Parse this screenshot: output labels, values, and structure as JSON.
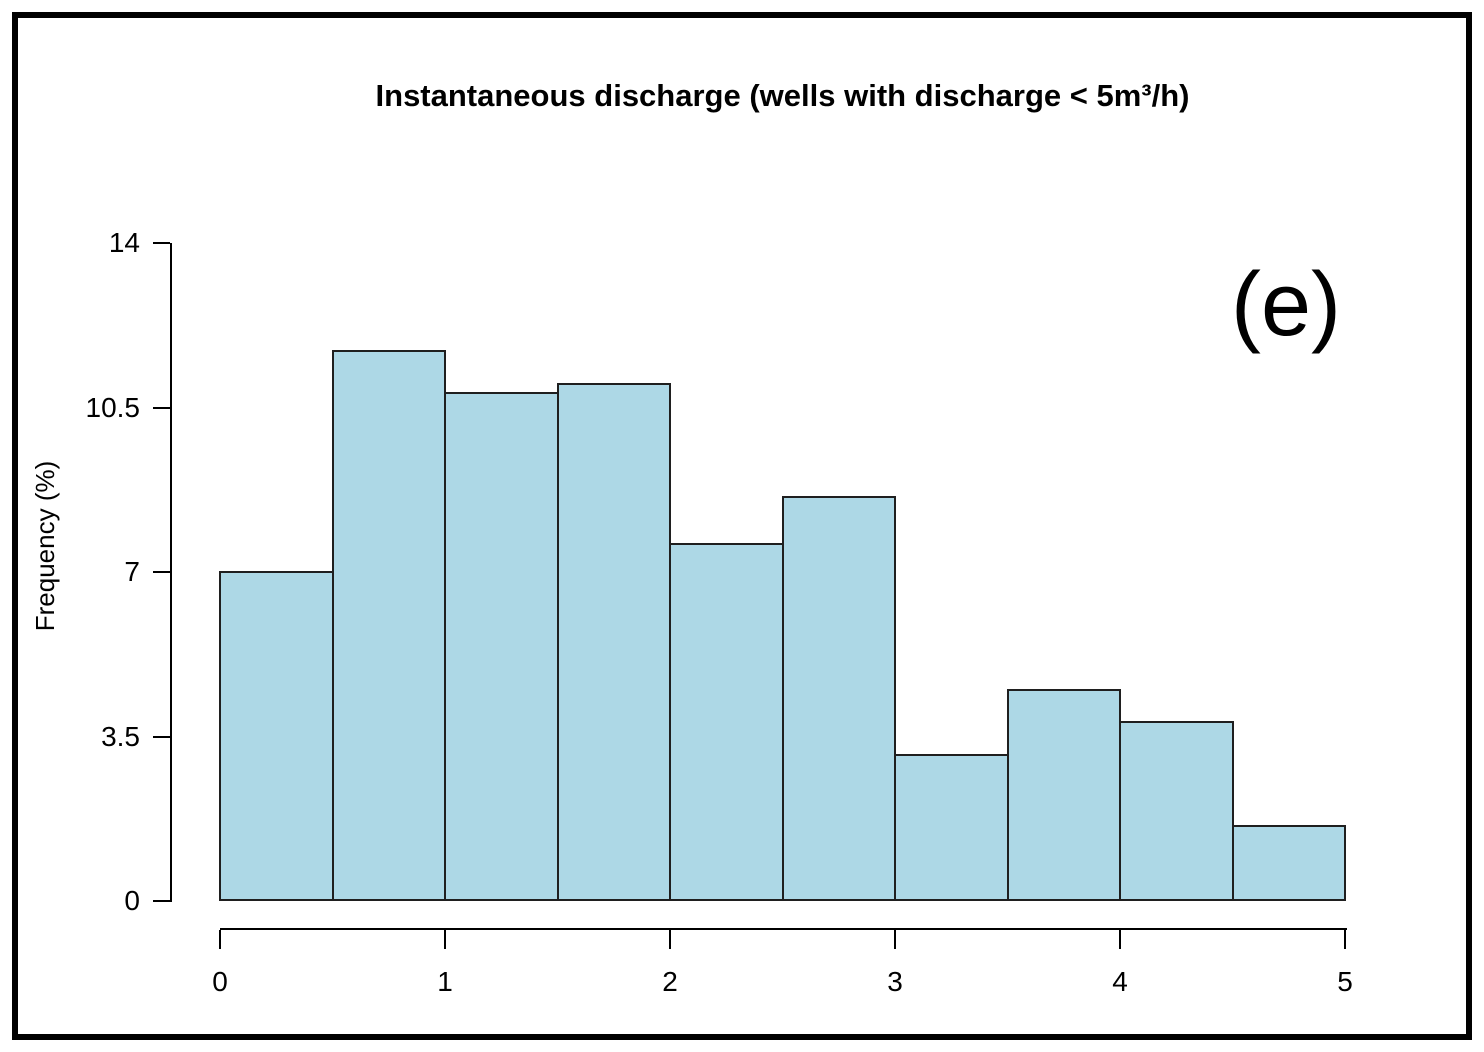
{
  "panel_label": "(e)",
  "colors": {
    "bar_fill": "#ADD8E6",
    "bar_border": "#1f1f1f",
    "axis": "#000000",
    "frame": "#000000",
    "background": "#ffffff"
  },
  "chart_data": {
    "type": "bar",
    "subtype": "histogram",
    "title": "Instantaneous discharge (wells with discharge < 5m³/h)",
    "xlabel": "",
    "ylabel": "Frequency (%)",
    "xlim": [
      0,
      5
    ],
    "ylim": [
      0,
      14
    ],
    "grid": false,
    "legend_position": "none",
    "bin_width": 0.5,
    "bin_edges": [
      0,
      0.5,
      1,
      1.5,
      2,
      2.5,
      3,
      3.5,
      4,
      4.5,
      5
    ],
    "values": [
      7.0,
      11.7,
      10.8,
      11.0,
      7.6,
      8.6,
      3.1,
      4.5,
      3.8,
      1.6
    ],
    "x_ticks": [
      0,
      1,
      2,
      3,
      4,
      5
    ],
    "x_tick_labels": [
      "0",
      "1",
      "2",
      "3",
      "4",
      "5"
    ],
    "y_ticks": [
      0,
      3.5,
      7,
      10.5,
      14
    ],
    "y_tick_labels": [
      "0",
      "3.5",
      "7",
      "10.5",
      "14"
    ]
  }
}
